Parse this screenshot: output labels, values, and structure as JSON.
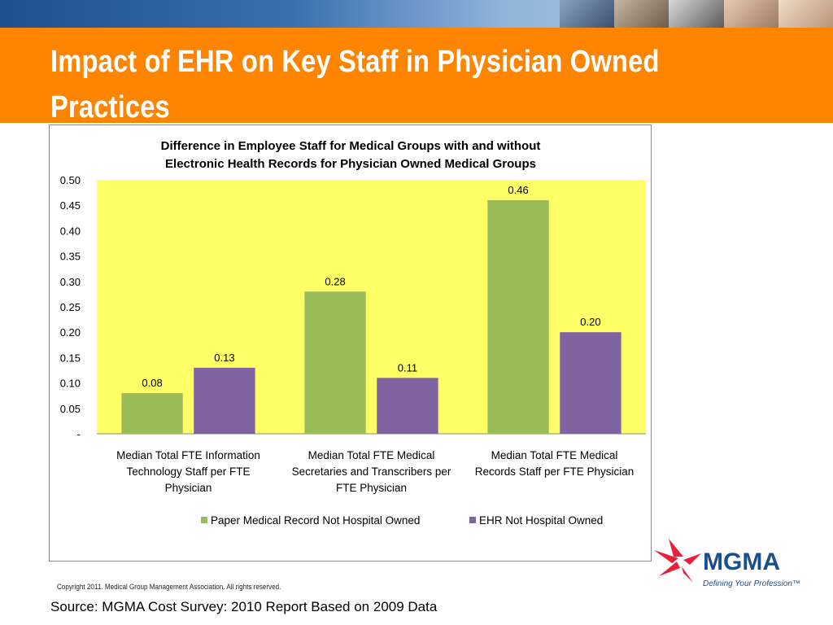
{
  "slide": {
    "title": "Impact of EHR on Key Staff in Physician Owned Practices",
    "copyright": "Copyright 2011. Medical Group Management Association. All rights reserved.",
    "source": "Source:  MGMA Cost Survey: 2010 Report Based on 2009 Data"
  },
  "logo": {
    "name": "MGMA",
    "tagline": "Defining Your Profession™"
  },
  "colors": {
    "orange_band": "#ff8400",
    "plot_background": "#ffff66",
    "series_paper": "#9bbb59",
    "series_ehr": "#8064a2",
    "logo_red": "#e8203a",
    "logo_blue": "#1a4e8c"
  },
  "chart_data": {
    "type": "bar",
    "title": "Difference in Employee Staff for Medical Groups with and without Electronic Health Records for Physician Owned Medical Groups",
    "title_lines": [
      "Difference in Employee Staff for Medical Groups with and without",
      "Electronic Health Records for Physician Owned Medical Groups"
    ],
    "categories": [
      "Median Total FTE Information Technology Staff per FTE Physician",
      "Median Total FTE Medical Secretaries and Transcribers  per FTE Physician",
      "Median Total FTE Medical Records Staff per FTE Physician"
    ],
    "category_lines": [
      [
        "Median Total FTE Information",
        "Technology Staff per FTE",
        "Physician"
      ],
      [
        "Median Total FTE Medical",
        "Secretaries and Transcribers  per",
        "FTE Physician"
      ],
      [
        "Median Total FTE Medical",
        "Records Staff per FTE Physician"
      ]
    ],
    "series": [
      {
        "name": "Paper Medical Record Not Hospital Owned",
        "values": [
          0.08,
          0.28,
          0.46
        ],
        "labels": [
          "0.08",
          "0.28",
          "0.46"
        ]
      },
      {
        "name": "EHR Not Hospital Owned",
        "values": [
          0.13,
          0.11,
          0.2
        ],
        "labels": [
          "0.13",
          "0.11",
          "0.20"
        ]
      }
    ],
    "ylim": [
      0,
      0.5
    ],
    "yticks": [
      0,
      0.05,
      0.1,
      0.15,
      0.2,
      0.25,
      0.3,
      0.35,
      0.4,
      0.45,
      0.5
    ],
    "ytick_labels": [
      "-",
      "0.05",
      "0.10",
      "0.15",
      "0.20",
      "0.25",
      "0.30",
      "0.35",
      "0.40",
      "0.45",
      "0.50"
    ],
    "xlabel": "",
    "ylabel": "",
    "grid": false,
    "legend_position": "bottom"
  }
}
